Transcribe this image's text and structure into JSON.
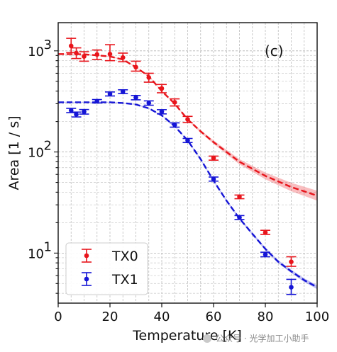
{
  "chart_data": {
    "type": "scatter",
    "xlabel": "Temperature [K]",
    "ylabel": "Area [1 / s]",
    "panel_label": "(c)",
    "xlim": [
      0,
      100
    ],
    "ylim": [
      3.2,
      1900
    ],
    "yscale": "log",
    "grid": true,
    "legend_position": "lower-left",
    "x_ticks": [
      0,
      20,
      40,
      60,
      80,
      100
    ],
    "y_ticks": [
      {
        "value": 10,
        "base": "10",
        "exp": "1"
      },
      {
        "value": 100,
        "base": "10",
        "exp": "2"
      },
      {
        "value": 1000,
        "base": "10",
        "exp": "3"
      }
    ],
    "series": [
      {
        "name": "TX0",
        "color": "#e8141b",
        "points": [
          {
            "x": 5,
            "y": 1120,
            "lo": 960,
            "hi": 1330
          },
          {
            "x": 7,
            "y": 950,
            "lo": 840,
            "hi": 1070
          },
          {
            "x": 10,
            "y": 880,
            "lo": 790,
            "hi": 980
          },
          {
            "x": 15,
            "y": 920,
            "lo": 820,
            "hi": 1020
          },
          {
            "x": 20,
            "y": 930,
            "lo": 800,
            "hi": 1150
          },
          {
            "x": 25,
            "y": 860,
            "lo": 780,
            "hi": 950
          },
          {
            "x": 30,
            "y": 690,
            "lo": 630,
            "hi": 790
          },
          {
            "x": 35,
            "y": 545,
            "lo": 490,
            "hi": 600
          },
          {
            "x": 40,
            "y": 425,
            "lo": 385,
            "hi": 465
          },
          {
            "x": 45,
            "y": 310,
            "lo": 285,
            "hi": 335
          },
          {
            "x": 50,
            "y": 210,
            "lo": 195,
            "hi": 225
          },
          {
            "x": 60,
            "y": 87,
            "lo": 83,
            "hi": 91
          },
          {
            "x": 70,
            "y": 36,
            "lo": 34.5,
            "hi": 37.5
          },
          {
            "x": 80,
            "y": 16,
            "lo": 15.3,
            "hi": 16.8
          },
          {
            "x": 90,
            "y": 8.2,
            "lo": 7.4,
            "hi": 9.2
          }
        ],
        "fit": [
          {
            "x": 0,
            "y": 930
          },
          {
            "x": 10,
            "y": 925
          },
          {
            "x": 20,
            "y": 880
          },
          {
            "x": 25,
            "y": 820
          },
          {
            "x": 30,
            "y": 690
          },
          {
            "x": 35,
            "y": 560
          },
          {
            "x": 40,
            "y": 400
          },
          {
            "x": 45,
            "y": 300
          },
          {
            "x": 50,
            "y": 210
          },
          {
            "x": 55,
            "y": 160
          },
          {
            "x": 60,
            "y": 125
          },
          {
            "x": 70,
            "y": 80
          },
          {
            "x": 80,
            "y": 58
          },
          {
            "x": 90,
            "y": 45
          },
          {
            "x": 100,
            "y": 37
          }
        ]
      },
      {
        "name": "TX1",
        "color": "#1515d6",
        "points": [
          {
            "x": 5,
            "y": 258,
            "lo": 245,
            "hi": 270
          },
          {
            "x": 7,
            "y": 235,
            "lo": 222,
            "hi": 248
          },
          {
            "x": 10,
            "y": 250,
            "lo": 237,
            "hi": 263
          },
          {
            "x": 15,
            "y": 318,
            "lo": 305,
            "hi": 330
          },
          {
            "x": 20,
            "y": 375,
            "lo": 358,
            "hi": 392
          },
          {
            "x": 25,
            "y": 395,
            "lo": 378,
            "hi": 412
          },
          {
            "x": 30,
            "y": 345,
            "lo": 328,
            "hi": 362
          },
          {
            "x": 35,
            "y": 305,
            "lo": 290,
            "hi": 320
          },
          {
            "x": 40,
            "y": 250,
            "lo": 238,
            "hi": 262
          },
          {
            "x": 45,
            "y": 185,
            "lo": 176,
            "hi": 194
          },
          {
            "x": 50,
            "y": 130,
            "lo": 124,
            "hi": 136
          },
          {
            "x": 60,
            "y": 54,
            "lo": 51.5,
            "hi": 56.5
          },
          {
            "x": 70,
            "y": 22.5,
            "lo": 21.5,
            "hi": 23.5
          },
          {
            "x": 80,
            "y": 9.7,
            "lo": 9.2,
            "hi": 10.2
          },
          {
            "x": 90,
            "y": 4.6,
            "lo": 3.9,
            "hi": 5.5
          }
        ],
        "fit": [
          {
            "x": 0,
            "y": 310
          },
          {
            "x": 10,
            "y": 310
          },
          {
            "x": 20,
            "y": 310
          },
          {
            "x": 25,
            "y": 305
          },
          {
            "x": 30,
            "y": 295
          },
          {
            "x": 35,
            "y": 270
          },
          {
            "x": 40,
            "y": 230
          },
          {
            "x": 45,
            "y": 180
          },
          {
            "x": 50,
            "y": 130
          },
          {
            "x": 55,
            "y": 85
          },
          {
            "x": 60,
            "y": 52
          },
          {
            "x": 65,
            "y": 33
          },
          {
            "x": 70,
            "y": 22
          },
          {
            "x": 75,
            "y": 15.5
          },
          {
            "x": 80,
            "y": 11
          },
          {
            "x": 85,
            "y": 8.2
          },
          {
            "x": 90,
            "y": 6.6
          },
          {
            "x": 95,
            "y": 5.4
          },
          {
            "x": 100,
            "y": 4.6
          }
        ]
      }
    ]
  },
  "watermark": {
    "text": "公众号 · 光学加工小助手"
  }
}
